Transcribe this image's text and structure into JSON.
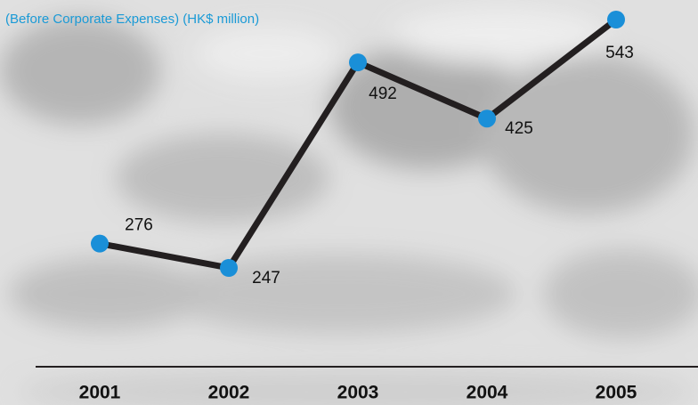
{
  "chart_data": {
    "type": "line",
    "subtitle": "(Before Corporate Expenses) (HK$ million)",
    "categories": [
      "2001",
      "2002",
      "2003",
      "2004",
      "2005"
    ],
    "series": [
      {
        "color": "#231f20",
        "marker_color": "#1a8fd8",
        "values": [
          276,
          247,
          492,
          425,
          543
        ]
      }
    ]
  }
}
